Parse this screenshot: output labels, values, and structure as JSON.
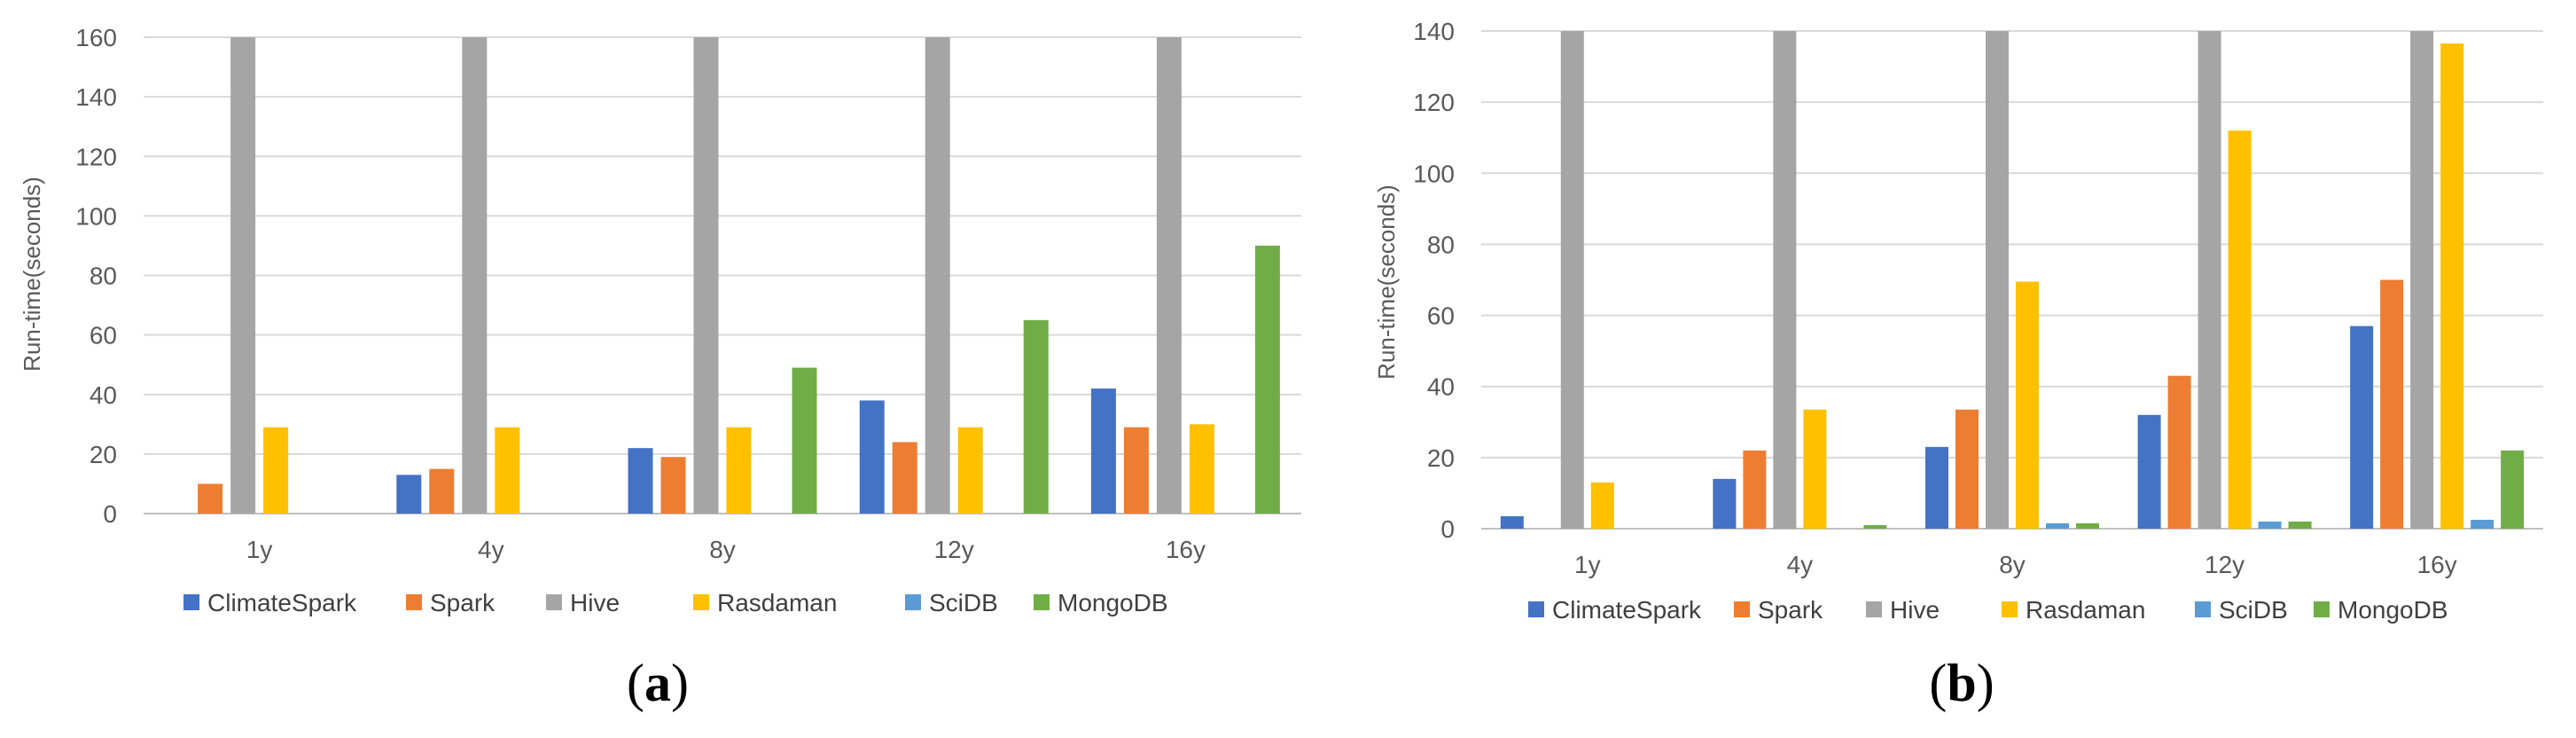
{
  "colors": {
    "ClimateSpark": "#4472C4",
    "Spark": "#ED7D31",
    "Hive": "#A5A5A5",
    "Rasdaman": "#FFC000",
    "SciDB": "#5B9BD5",
    "MongoDB": "#70AD47",
    "grid": "#D9D9D9",
    "axis": "#BFBFBF"
  },
  "chart_data": [
    {
      "type": "bar",
      "panel_label_open": "(",
      "panel_label_letter": "a",
      "panel_label_close": ")",
      "ylabel": "Run-time(seconds)",
      "xlabel": "",
      "ylim": [
        0,
        160
      ],
      "yticks": [
        0,
        20,
        40,
        60,
        80,
        100,
        120,
        140,
        160
      ],
      "categories": [
        "1y",
        "4y",
        "8y",
        "12y",
        "16y"
      ],
      "legend_position": "bottom",
      "series": [
        {
          "name": "ClimateSpark",
          "values": [
            0,
            13,
            22,
            38,
            42
          ]
        },
        {
          "name": "Spark",
          "values": [
            10,
            15,
            19,
            24,
            29
          ]
        },
        {
          "name": "Hive",
          "values": [
            160,
            160,
            160,
            160,
            160
          ]
        },
        {
          "name": "Rasdaman",
          "values": [
            29,
            29,
            29,
            29,
            30
          ]
        },
        {
          "name": "SciDB",
          "values": [
            0,
            0,
            0,
            0,
            0
          ]
        },
        {
          "name": "MongoDB",
          "values": [
            0,
            0,
            49,
            65,
            90
          ]
        }
      ]
    },
    {
      "type": "bar",
      "panel_label_open": "(",
      "panel_label_letter": "b",
      "panel_label_close": ")",
      "ylabel": "Run-time(seconds)",
      "xlabel": "",
      "ylim": [
        0,
        140
      ],
      "yticks": [
        0,
        20,
        40,
        60,
        80,
        100,
        120,
        140
      ],
      "categories": [
        "1y",
        "4y",
        "8y",
        "12y",
        "16y"
      ],
      "legend_position": "bottom",
      "series": [
        {
          "name": "ClimateSpark",
          "values": [
            3.5,
            14,
            23,
            32,
            57
          ]
        },
        {
          "name": "Spark",
          "values": [
            0,
            22,
            33.5,
            43,
            70
          ]
        },
        {
          "name": "Hive",
          "values": [
            140,
            140,
            140,
            140,
            140
          ]
        },
        {
          "name": "Rasdaman",
          "values": [
            13,
            33.5,
            69.5,
            112,
            136.5
          ]
        },
        {
          "name": "SciDB",
          "values": [
            0,
            0,
            1.5,
            2,
            2.5
          ]
        },
        {
          "name": "MongoDB",
          "values": [
            0,
            1,
            1.5,
            2,
            22
          ]
        }
      ]
    }
  ]
}
